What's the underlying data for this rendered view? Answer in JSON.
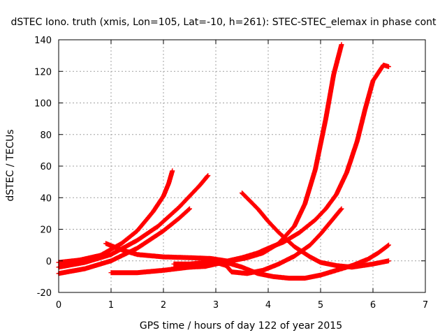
{
  "chart_data": {
    "type": "scatter",
    "title": "dSTEC Iono. truth (xmis, Lon=105, Lat=-10, h=261): STEC-STEC_elemax in phase cont",
    "xlabel": "GPS time / hours of day 122 of year 2015",
    "ylabel": "dSTEC  / TECUs",
    "xlim": [
      0,
      7
    ],
    "ylim": [
      -20,
      140
    ],
    "xticks": [
      0,
      1,
      2,
      3,
      4,
      5,
      6,
      7
    ],
    "yticks": [
      -20,
      0,
      20,
      40,
      60,
      80,
      100,
      120,
      140
    ],
    "x_tick_labels": [
      "0",
      "1",
      "2",
      "3",
      "4",
      "5",
      "6",
      "7"
    ],
    "y_tick_labels": [
      "-20",
      "0",
      "20",
      "40",
      "60",
      "80",
      "100",
      "120",
      "140"
    ],
    "grid": true,
    "marker": "plus",
    "color": "#ff0000",
    "series": [
      {
        "x": [
          0,
          0.4,
          0.8,
          1.2,
          1.5,
          1.8,
          2.0,
          2.1,
          2.17
        ],
        "y": [
          -1,
          0.5,
          3.5,
          11,
          19,
          31,
          41,
          49,
          57
        ]
      },
      {
        "x": [
          0,
          0.5,
          1.0,
          1.5,
          1.9,
          2.1,
          2.3,
          2.5,
          2.7,
          2.85
        ],
        "y": [
          -4,
          -1,
          4,
          13,
          22,
          28,
          34,
          41,
          48,
          54
        ]
      },
      {
        "x": [
          0,
          0.5,
          1.0,
          1.5,
          2.0,
          2.3,
          2.5
        ],
        "y": [
          -8,
          -5,
          0,
          8,
          19,
          27,
          33
        ]
      },
      {
        "x": [
          0.9,
          1.2,
          1.5,
          2.0,
          2.5,
          2.9,
          3.2
        ],
        "y": [
          11,
          7,
          4,
          2.5,
          2,
          1.5,
          0
        ]
      },
      {
        "x": [
          1.0,
          1.5,
          2.0,
          2.5,
          3.0,
          3.3,
          3.6,
          3.9,
          4.2,
          4.5,
          4.7,
          4.9,
          5.1,
          5.25,
          5.4
        ],
        "y": [
          -7.5,
          -7.5,
          -6,
          -4,
          -2,
          0,
          2,
          5,
          11,
          22,
          36,
          58,
          90,
          118,
          137
        ]
      },
      {
        "x": [
          2.2,
          2.5,
          2.8,
          3.0,
          3.2,
          3.3,
          3.6,
          3.9,
          4.2,
          4.5,
          4.8,
          5.0,
          5.2,
          5.4
        ],
        "y": [
          -2,
          -2,
          -1,
          -1,
          -3,
          -7,
          -8,
          -6,
          -2,
          3,
          10,
          17,
          25,
          33
        ]
      },
      {
        "x": [
          2.2,
          2.5,
          2.8,
          3.0,
          3.1,
          3.3,
          3.5,
          3.8,
          4.0,
          4.3,
          4.6,
          4.9,
          5.1,
          5.3,
          5.5,
          5.7,
          5.85,
          6.0,
          6.2,
          6.3
        ],
        "y": [
          -4,
          -4,
          -3.5,
          -2,
          -1,
          0.5,
          2,
          5,
          8,
          12,
          18,
          26,
          33,
          42,
          56,
          76,
          96,
          114,
          124,
          123
        ]
      },
      {
        "x": [
          3.5,
          3.8,
          4.0,
          4.2,
          4.5,
          4.8,
          5.0,
          5.3,
          5.6,
          5.8,
          6.0,
          6.3
        ],
        "y": [
          43,
          33,
          25,
          18,
          9,
          2.5,
          -1,
          -3,
          -4,
          -3,
          -2,
          0
        ]
      },
      {
        "x": [
          2.9,
          3.2,
          3.5,
          3.8,
          4.1,
          4.4,
          4.7,
          5.0,
          5.3,
          5.6,
          5.9,
          6.1,
          6.3
        ],
        "y": [
          -2,
          -1,
          -4,
          -8,
          -10,
          -11,
          -11,
          -9,
          -6,
          -3,
          1,
          5,
          10
        ]
      }
    ]
  }
}
